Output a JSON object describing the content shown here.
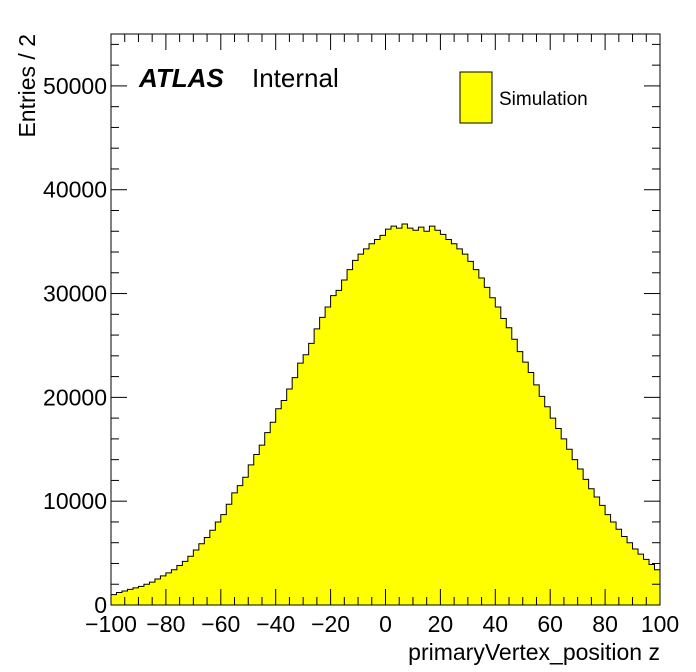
{
  "chart_data": {
    "type": "bar",
    "subtype": "histogram",
    "xlabel": "primaryVertex_position z",
    "ylabel": "Entries / 2",
    "experiment_label": "ATLAS",
    "status_label": "Internal",
    "legend": {
      "position": "top-right",
      "entries": [
        "Simulation"
      ]
    },
    "colors": {
      "fill": "#ffff00",
      "line": "#000000"
    },
    "xlim": [
      -100,
      100
    ],
    "ylim": [
      0,
      55000
    ],
    "bin_width": 2,
    "x_ticks": [
      "−100",
      "−80",
      "−60",
      "−40",
      "−20",
      "0",
      "20",
      "40",
      "60",
      "80",
      "100"
    ],
    "y_ticks": [
      "0",
      "10000",
      "20000",
      "30000",
      "40000",
      "50000"
    ],
    "x_tick_values": [
      -100,
      -80,
      -60,
      -40,
      -20,
      0,
      20,
      40,
      60,
      80,
      100
    ],
    "y_tick_values": [
      0,
      10000,
      20000,
      30000,
      40000,
      50000
    ],
    "grid": false,
    "bin_edges_start": -100,
    "values": [
      1000,
      1200,
      1350,
      1500,
      1650,
      1800,
      2000,
      2200,
      2500,
      2800,
      3100,
      3400,
      3800,
      4200,
      4700,
      5300,
      5900,
      6500,
      7200,
      8000,
      8700,
      9700,
      10800,
      11500,
      12300,
      13500,
      14500,
      15400,
      16600,
      17600,
      18900,
      19700,
      20800,
      21900,
      23300,
      24100,
      25200,
      26600,
      27700,
      28700,
      29800,
      30300,
      31300,
      32300,
      33200,
      33800,
      34300,
      34800,
      35200,
      35600,
      36200,
      36500,
      36300,
      36700,
      36300,
      36100,
      36400,
      36000,
      36500,
      36100,
      35700,
      35200,
      34800,
      34300,
      33800,
      33100,
      32300,
      31500,
      30600,
      29600,
      28700,
      27600,
      26700,
      25600,
      24400,
      23400,
      22400,
      21200,
      20100,
      19100,
      18000,
      17000,
      16000,
      15000,
      14000,
      13100,
      12100,
      11200,
      10400,
      9600,
      8700,
      8000,
      7300,
      6600,
      6000,
      5400,
      4900,
      4400,
      3900,
      3400
    ]
  }
}
